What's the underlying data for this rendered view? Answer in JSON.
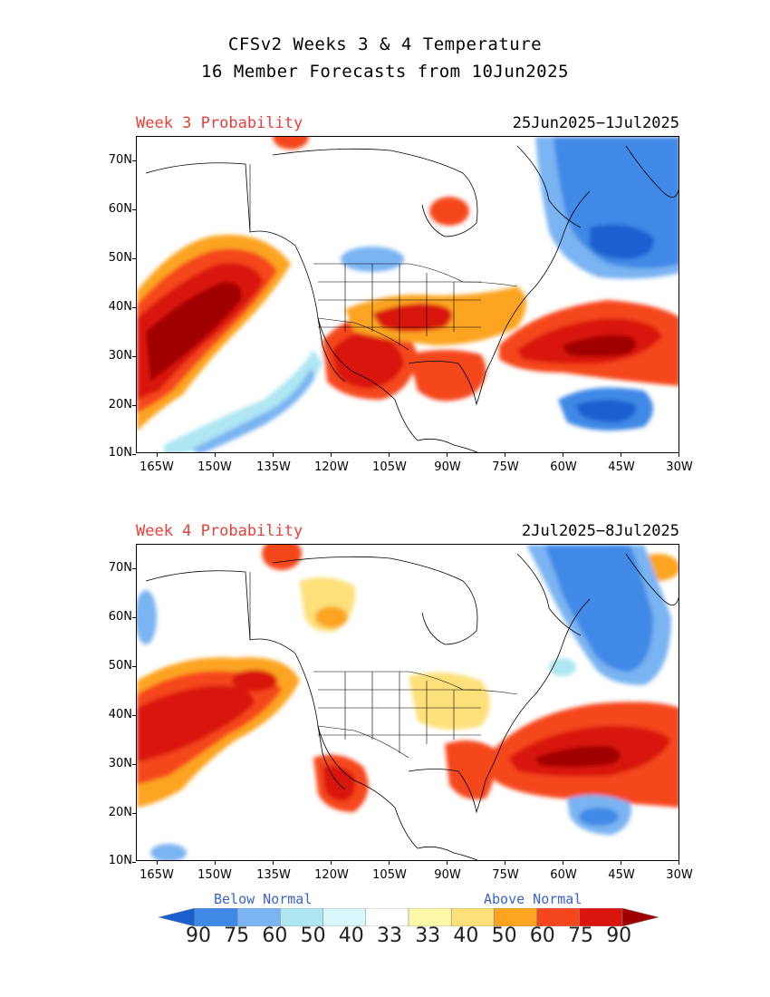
{
  "title_line1": "CFSv2 Weeks 3 & 4 Temperature",
  "title_line2": "16 Member Forecasts from 10Jun2025",
  "panels": [
    {
      "label": "Week 3 Probability",
      "dates": "25Jun2025−1Jul2025"
    },
    {
      "label": "Week 4 Probability",
      "dates": "2Jul2025−8Jul2025"
    }
  ],
  "axes": {
    "lat_labels": [
      "70N",
      "60N",
      "50N",
      "40N",
      "30N",
      "20N",
      "10N"
    ],
    "lon_labels": [
      "165W",
      "150W",
      "135W",
      "120W",
      "105W",
      "90W",
      "75W",
      "60W",
      "45W",
      "30W"
    ]
  },
  "legend": {
    "below_label": "Below Normal",
    "above_label": "Above Normal",
    "values": [
      "90",
      "75",
      "60",
      "50",
      "40",
      "33",
      "33",
      "40",
      "50",
      "60",
      "75",
      "90"
    ],
    "colors": [
      "#1a5fd0",
      "#3f89e6",
      "#7ab4f2",
      "#aee6f2",
      "#d9f8fb",
      "#ffffff",
      "#fdf8a8",
      "#fde07a",
      "#fca420",
      "#f5471d",
      "#d9150d",
      "#a10000"
    ]
  }
}
